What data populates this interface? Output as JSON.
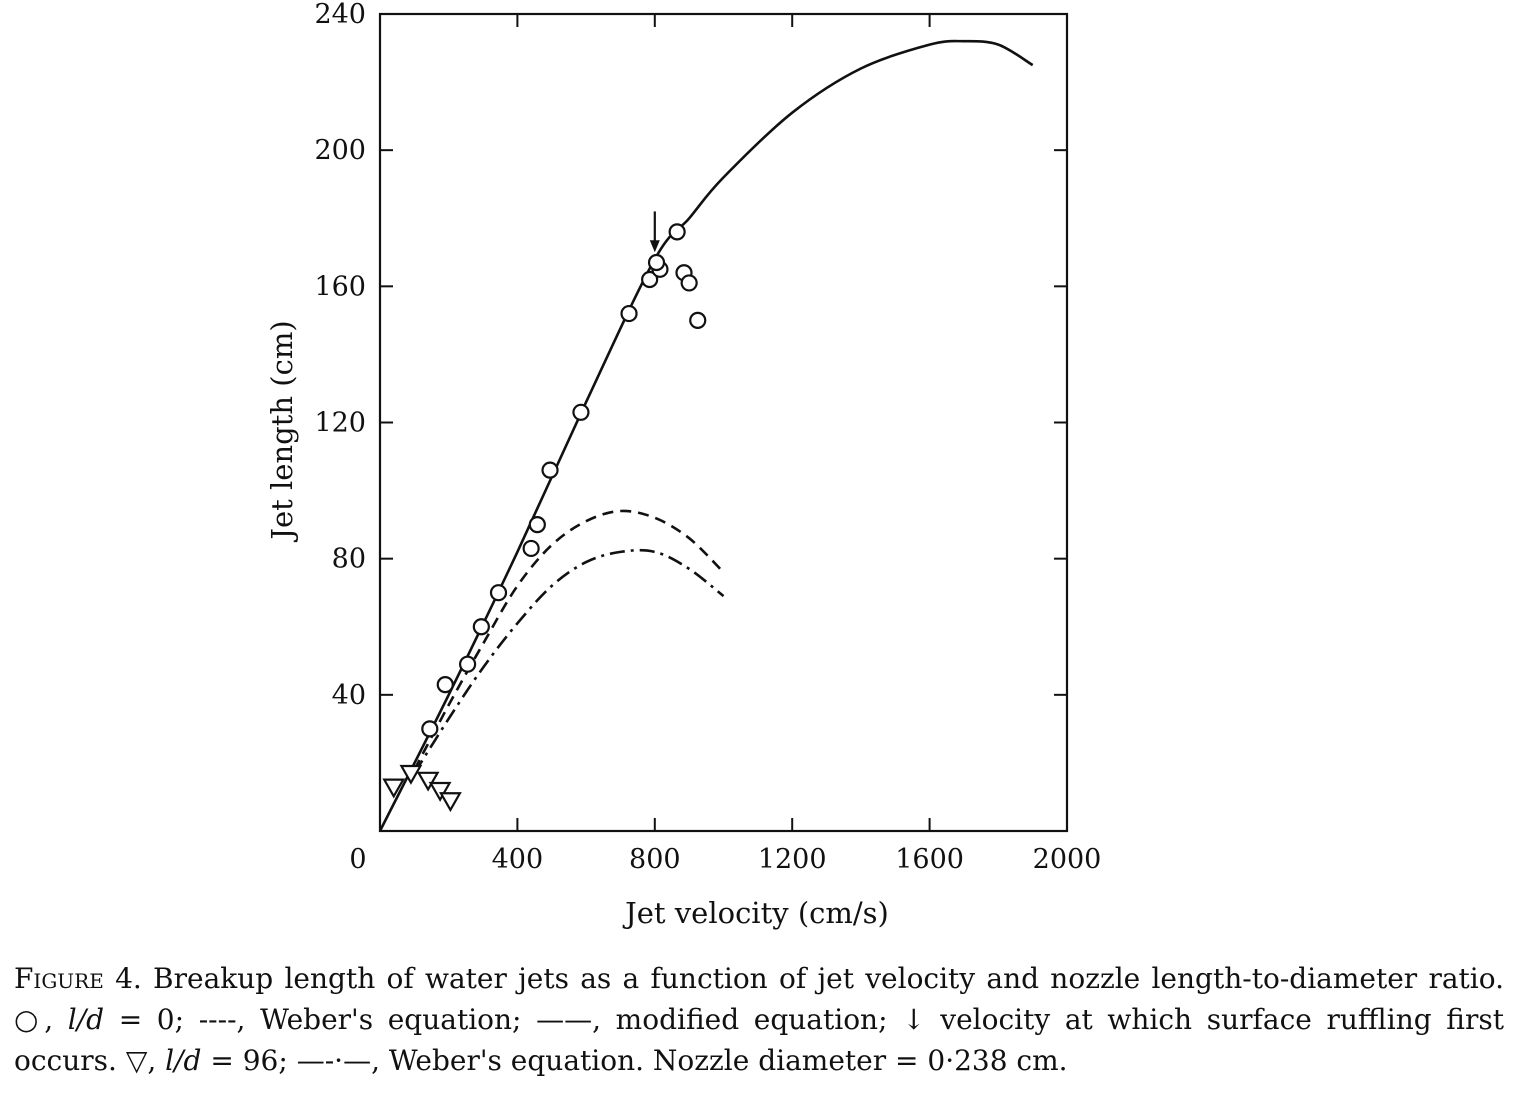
{
  "chart_data": {
    "type": "scatter",
    "xlabel": "Jet velocity (cm/s)",
    "ylabel": "Jet length (cm)",
    "xlim": [
      0,
      2000
    ],
    "ylim": [
      0,
      240
    ],
    "x_ticks": [
      0,
      400,
      800,
      1200,
      1600,
      2000
    ],
    "y_ticks": [
      40,
      80,
      120,
      160,
      200,
      240
    ],
    "grid": false,
    "series": [
      {
        "name": "○, l/d = 0",
        "marker": "circle",
        "points": [
          [
            145,
            30
          ],
          [
            190,
            43
          ],
          [
            255,
            49
          ],
          [
            295,
            60
          ],
          [
            345,
            70
          ],
          [
            440,
            83
          ],
          [
            458,
            90
          ],
          [
            495,
            106
          ],
          [
            585,
            123
          ],
          [
            725,
            152
          ],
          [
            785,
            162
          ],
          [
            815,
            165
          ],
          [
            805,
            167
          ],
          [
            865,
            176
          ],
          [
            885,
            164
          ],
          [
            900,
            161
          ],
          [
            925,
            150
          ]
        ]
      },
      {
        "name": "▽, l/d = 96",
        "marker": "triangle-down",
        "points": [
          [
            40,
            13
          ],
          [
            90,
            17
          ],
          [
            140,
            15
          ],
          [
            175,
            12
          ],
          [
            205,
            9
          ]
        ]
      },
      {
        "name": "——, modified equation",
        "line_style": "solid",
        "points": [
          [
            0,
            0
          ],
          [
            200,
            40
          ],
          [
            400,
            82
          ],
          [
            600,
            126
          ],
          [
            800,
            168
          ],
          [
            900,
            180
          ],
          [
            1000,
            192
          ],
          [
            1200,
            211
          ],
          [
            1400,
            224
          ],
          [
            1600,
            231
          ],
          [
            1700,
            232
          ],
          [
            1800,
            231
          ],
          [
            1900,
            225
          ]
        ]
      },
      {
        "name": "----, Weber's equation (l/d = 0)",
        "line_style": "dashed",
        "points": [
          [
            100,
            18
          ],
          [
            200,
            37
          ],
          [
            300,
            55
          ],
          [
            400,
            72
          ],
          [
            500,
            84
          ],
          [
            600,
            91
          ],
          [
            700,
            94
          ],
          [
            800,
            92
          ],
          [
            900,
            86
          ],
          [
            1000,
            76
          ]
        ]
      },
      {
        "name": "—-·—, Weber's equation (l/d = 96)",
        "line_style": "dash-dot",
        "points": [
          [
            100,
            17
          ],
          [
            200,
            33
          ],
          [
            300,
            48
          ],
          [
            400,
            61
          ],
          [
            500,
            72
          ],
          [
            600,
            79
          ],
          [
            700,
            82
          ],
          [
            800,
            82
          ],
          [
            900,
            77
          ],
          [
            1000,
            69
          ]
        ]
      }
    ],
    "annotations": [
      {
        "type": "arrow-down",
        "x": 800,
        "y_from": 182,
        "y_to": 170,
        "meaning": "velocity at which surface ruffling first occurs"
      }
    ]
  },
  "caption": {
    "figure_label": "Figure 4.",
    "part1": " Breakup length of water jets as a function of jet velocity and nozzle length-to-diameter ratio. ",
    "circle_symbol": "○",
    "sep1": ", ",
    "ld_var": "l/d",
    "eq_zero": " = 0; ",
    "dashed_key": "----",
    "webers_eq_1": ", Weber's equation; ",
    "solid_key": "——",
    "modified_eq": ", modified equation; ",
    "arrow_symbol": "↓",
    "arrow_text": "  velocity at which surface ruffling first occurs. ",
    "triangle_symbol": "▽",
    "sep2": ", ",
    "ld_var_2": "l/d",
    "eq_96": " = 96; ",
    "dashdot_key": "—-·—",
    "webers_eq_2": ", Weber's equation. Nozzle diameter = 0·238 cm."
  }
}
